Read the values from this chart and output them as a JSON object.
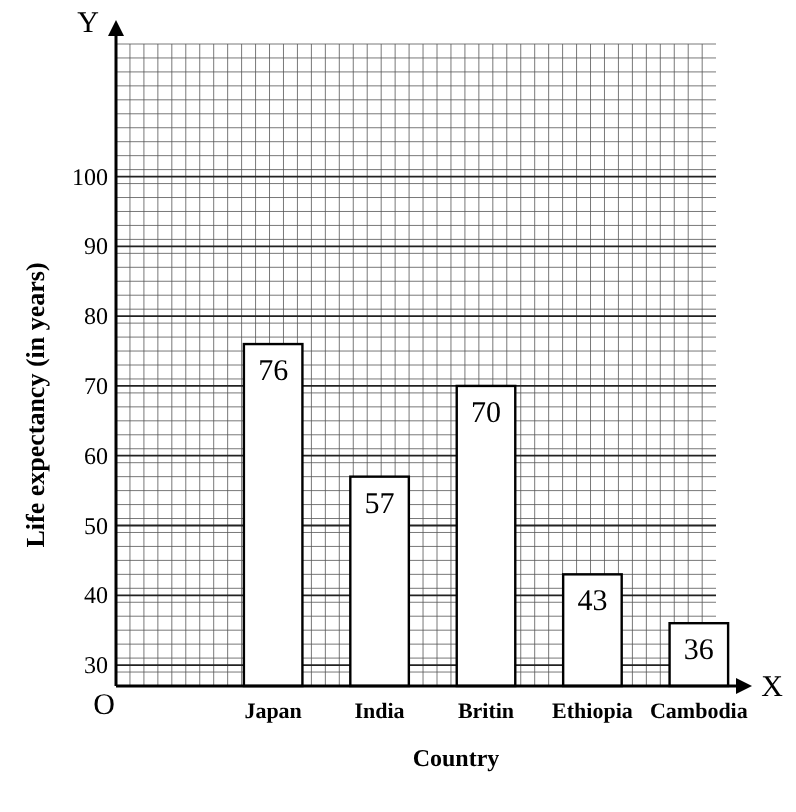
{
  "chart_data": {
    "type": "bar",
    "xlabel": "Country",
    "ylabel": "Life expectancy (in years)",
    "categories": [
      "Japan",
      "India",
      "Britin",
      "Ethiopia",
      "Cambodia"
    ],
    "values": [
      76,
      57,
      70,
      43,
      36
    ],
    "color": "#ffffff",
    "ylim": [
      27,
      119
    ],
    "yticks": [
      30,
      40,
      50,
      60,
      70,
      80,
      90,
      100
    ],
    "grid": true,
    "data_labels": true,
    "annotations": [
      "O",
      "Y",
      "X"
    ]
  }
}
